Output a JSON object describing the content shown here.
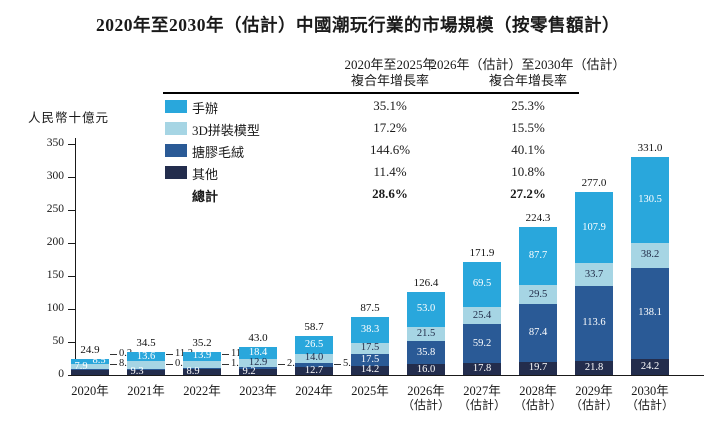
{
  "title": "2020年至2030年（估計）中國潮玩行業的市場規模（按零售額計）",
  "table": {
    "col1_header_line1": "2020年至2025年",
    "col1_header_line2": "複合年增長率",
    "col2_header_line1": "2026年（估計）至2030年（估計）",
    "col2_header_line2": "複合年增長率",
    "rows": [
      {
        "label": "手辦",
        "cagr1": "35.1%",
        "cagr2": "25.3%"
      },
      {
        "label": "3D拼裝模型",
        "cagr1": "17.2%",
        "cagr2": "15.5%"
      },
      {
        "label": "搪膠毛絨",
        "cagr1": "144.6%",
        "cagr2": "40.1%"
      },
      {
        "label": "其他",
        "cagr1": "11.4%",
        "cagr2": "10.8%"
      }
    ],
    "total_row": {
      "label": "總計",
      "cagr1": "28.6%",
      "cagr2": "27.2%"
    }
  },
  "chart_data": {
    "type": "bar",
    "stacked": true,
    "title": "2020年至2030年（估計）中國潮玩行業的市場規模（按零售額計）",
    "ylabel": "人民幣十億元",
    "xlabel": "",
    "ylim": [
      0,
      350
    ],
    "yticks": [
      0,
      50,
      100,
      150,
      200,
      250,
      300,
      350
    ],
    "grid": false,
    "legend_position": "top-left table with CAGR columns",
    "categories": [
      {
        "label": "2020年",
        "sublabel": ""
      },
      {
        "label": "2021年",
        "sublabel": ""
      },
      {
        "label": "2022年",
        "sublabel": ""
      },
      {
        "label": "2023年",
        "sublabel": ""
      },
      {
        "label": "2024年",
        "sublabel": ""
      },
      {
        "label": "2025年",
        "sublabel": ""
      },
      {
        "label": "2026年",
        "sublabel": "（估計）"
      },
      {
        "label": "2027年",
        "sublabel": "（估計）"
      },
      {
        "label": "2028年",
        "sublabel": "（估計）"
      },
      {
        "label": "2029年",
        "sublabel": "（估計）"
      },
      {
        "label": "2030年",
        "sublabel": "（估計）"
      }
    ],
    "stack_order_top_to_bottom": [
      "手辦",
      "3D拼裝模型",
      "搪膠毛絨",
      "其他"
    ],
    "series": [
      {
        "name": "手辦",
        "color": "#29A7DC",
        "label_color": "#ffffff",
        "values": [
          8.5,
          13.6,
          13.9,
          18.4,
          26.5,
          38.3,
          53.0,
          69.5,
          87.7,
          107.9,
          130.5
        ]
      },
      {
        "name": "3D拼裝模型",
        "color": "#A6D5E4",
        "label_color": "#1F2A47",
        "values": [
          7.9,
          11.2,
          11.4,
          12.9,
          14.0,
          17.5,
          21.5,
          25.4,
          29.5,
          33.7,
          38.2
        ]
      },
      {
        "name": "搪膠毛絨",
        "color": "#2A5A96",
        "label_color": "#ffffff",
        "values": [
          0.2,
          0.4,
          1.0,
          2.5,
          5.5,
          17.5,
          35.8,
          59.2,
          87.4,
          113.6,
          138.1
        ]
      },
      {
        "name": "其他",
        "color": "#232D4D",
        "label_color": "#ffffff",
        "values": [
          8.3,
          9.3,
          8.9,
          9.2,
          12.7,
          14.2,
          16.0,
          17.8,
          19.7,
          21.8,
          24.2
        ]
      }
    ],
    "totals": [
      24.9,
      34.5,
      35.2,
      43.0,
      58.7,
      87.5,
      126.4,
      171.9,
      224.3,
      277.0,
      331.0
    ],
    "outside_labels": [
      [
        2,
        3
      ],
      [
        1,
        2
      ],
      [
        1,
        2
      ],
      [
        2
      ],
      [
        2
      ],
      [],
      [],
      [],
      [],
      [],
      []
    ]
  }
}
